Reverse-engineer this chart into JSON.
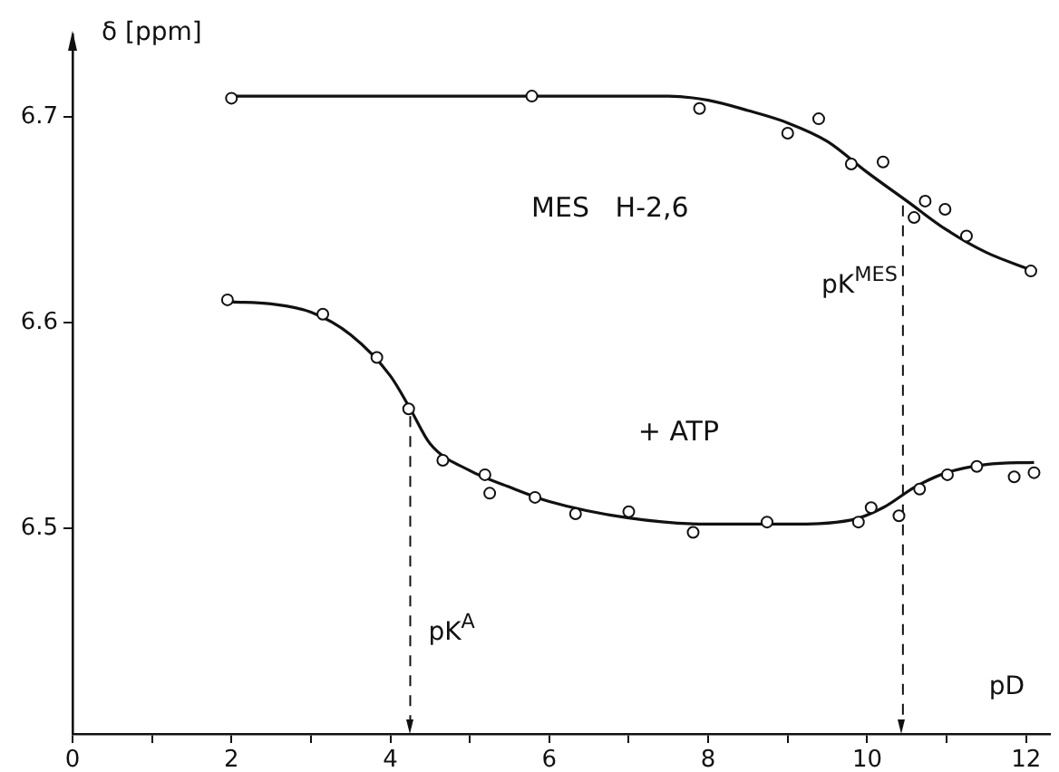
{
  "chart_data": {
    "type": "scatter",
    "ylabel": "δ [ppm]",
    "xlabel": "pD",
    "xlim": [
      0,
      12.3
    ],
    "xticks": [
      0,
      {
        "value": 1,
        "label": null
      },
      2,
      {
        "value": 3,
        "label": null
      },
      4,
      {
        "value": 5,
        "label": null
      },
      6,
      {
        "value": 7,
        "label": null
      },
      8,
      {
        "value": 9,
        "label": null
      },
      10,
      {
        "value": 11,
        "label": null
      },
      12
    ],
    "ylim": [
      6.4,
      6.74
    ],
    "yticks": [
      6.5,
      6.6,
      6.7
    ],
    "grid": false,
    "legend": false,
    "marker": "circle",
    "series": [
      {
        "type": "scatter",
        "color": "#111111",
        "x": [
          2.0,
          5.78,
          7.89,
          9.0,
          9.39,
          9.8,
          10.2,
          10.59,
          10.73,
          10.98,
          11.25,
          12.06
        ],
        "values": [
          6.709,
          6.71,
          6.704,
          6.692,
          6.699,
          6.677,
          6.678,
          6.651,
          6.659,
          6.655,
          6.642,
          6.625
        ]
      },
      {
        "type": "line",
        "color": "#111111",
        "marker": "none",
        "x": [
          2.0,
          4,
          6,
          7.5,
          8,
          8.5,
          9,
          9.5,
          10,
          10.5,
          11,
          11.5,
          12.1
        ],
        "values": [
          6.71,
          6.71,
          6.71,
          6.71,
          6.708,
          6.703,
          6.697,
          6.688,
          6.673,
          6.659,
          6.645,
          6.634,
          6.625
        ]
      },
      {
        "type": "scatter",
        "color": "#111111",
        "x": [
          1.95,
          3.15,
          3.83,
          4.23,
          4.66,
          5.19,
          5.25,
          5.82,
          6.33,
          7.0,
          7.81,
          8.74,
          9.89,
          10.05,
          10.4,
          10.66,
          11.01,
          11.38,
          11.85,
          12.1
        ],
        "values": [
          6.611,
          6.604,
          6.583,
          6.558,
          6.533,
          6.526,
          6.517,
          6.515,
          6.507,
          6.508,
          6.498,
          6.503,
          6.503,
          6.51,
          6.506,
          6.519,
          6.526,
          6.53,
          6.525,
          6.527
        ]
      },
      {
        "type": "line",
        "color": "#111111",
        "marker": "none",
        "x": [
          2.0,
          2.5,
          3,
          3.5,
          4,
          4.25,
          4.5,
          5,
          5.5,
          6,
          7,
          8,
          9,
          9.8,
          10.2,
          10.6,
          11,
          11.5,
          12.1
        ],
        "values": [
          6.61,
          6.609,
          6.605,
          6.594,
          6.574,
          6.558,
          6.541,
          6.528,
          6.52,
          6.513,
          6.505,
          6.502,
          6.502,
          6.504,
          6.51,
          6.52,
          6.527,
          6.531,
          6.532
        ]
      }
    ],
    "ref_lines": [
      {
        "axis": "x",
        "value": 4.25,
        "label": "pK$^{A}$",
        "line_style": "dashed"
      },
      {
        "axis": "x",
        "value": 10.45,
        "label": "pK$^{MES}$",
        "line_style": "dashed"
      }
    ],
    "annotations": [
      "MES   H-2,6",
      "+ ATP"
    ]
  }
}
